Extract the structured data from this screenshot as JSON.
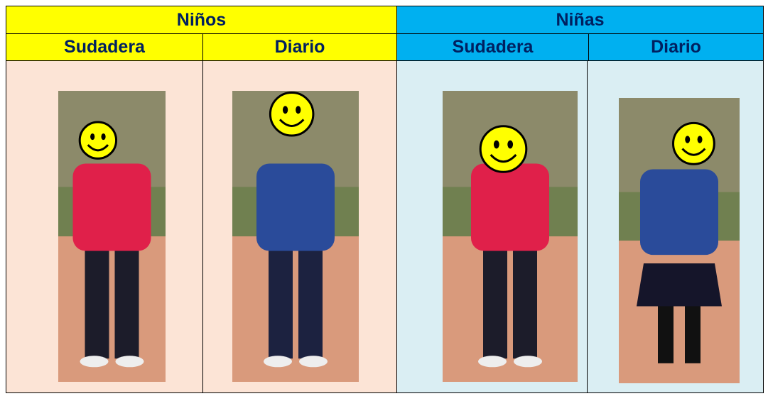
{
  "table": {
    "groups": [
      "Niños",
      "Niñas"
    ],
    "columns": [
      "Sudadera",
      "Diario",
      "Sudadera",
      "Diario"
    ]
  }
}
